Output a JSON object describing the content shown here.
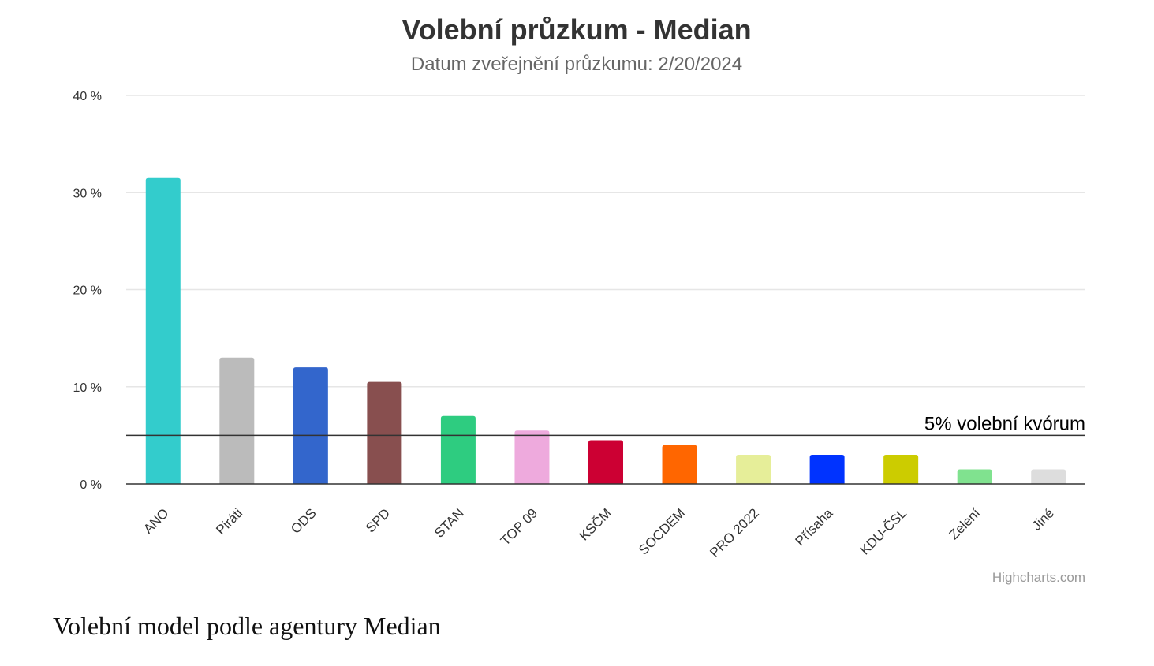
{
  "caption": "Volební model podle agentury Median",
  "credits": "Highcharts.com",
  "chart_data": {
    "type": "bar",
    "title": "Volební průzkum - Median",
    "subtitle": "Datum zveřejnění průzkumu: 2/20/2024",
    "categories": [
      "ANO",
      "Piráti",
      "ODS",
      "SPD",
      "STAN",
      "TOP 09",
      "KSČM",
      "SOCDEM",
      "PRO 2022",
      "Přísaha",
      "KDU-ČSL",
      "Zelení",
      "Jiné"
    ],
    "values": [
      31.5,
      13,
      12,
      10.5,
      7,
      5.5,
      4.5,
      4,
      3,
      3,
      3,
      1.5,
      1.5
    ],
    "colors": [
      "#33cccc",
      "#bbbbbb",
      "#3366cc",
      "#884f4f",
      "#2ecc80",
      "#eeaadd",
      "#cc0033",
      "#ff6600",
      "#e6ee99",
      "#0033ff",
      "#cccc00",
      "#80e28f",
      "#dddddd"
    ],
    "yticks": [
      "0 %",
      "10 %",
      "20 %",
      "30 %",
      "40 %"
    ],
    "ytick_values": [
      0,
      10,
      20,
      30,
      40
    ],
    "ylim": [
      0,
      40
    ],
    "grid": true,
    "legend": false,
    "threshold": {
      "value": 5,
      "label": "5% volební kvórum",
      "color": "#333333"
    }
  }
}
